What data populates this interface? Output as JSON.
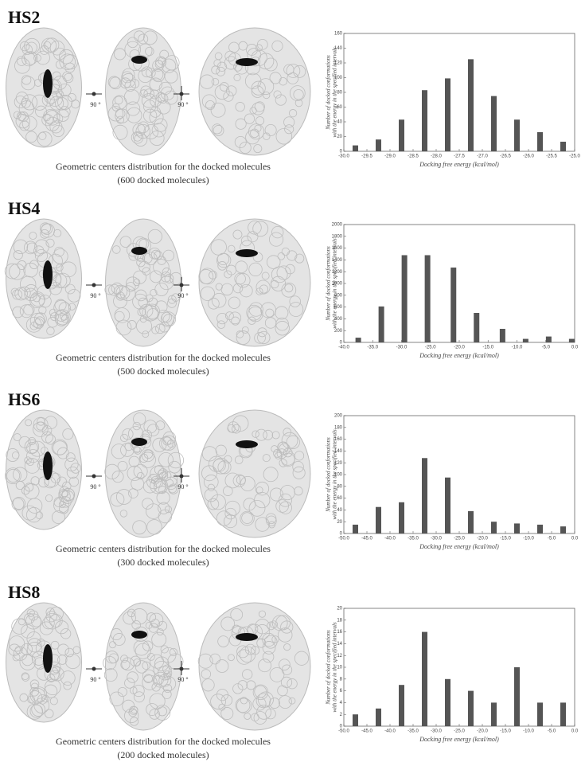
{
  "figure": {
    "rotation_label": "90 °"
  },
  "chart_data": [
    {
      "type": "bar",
      "title": "HS2",
      "caption": [
        "Geometric centers distribution for the docked molecules",
        "(600 docked molecules)"
      ],
      "x_label": "Docking free energy (kcal/mol)",
      "y_label": [
        "Number of docked conformations",
        "with the energy in the specified intervals"
      ],
      "x": [
        -29.75,
        -29.25,
        -28.75,
        -28.25,
        -27.75,
        -27.25,
        -26.75,
        -26.25,
        -25.75,
        -25.25
      ],
      "values": [
        8,
        16,
        43,
        83,
        99,
        125,
        75,
        43,
        26,
        13
      ],
      "color": "#555555",
      "xlim": [
        -30,
        -25
      ],
      "xticks": [
        {
          "value": -30,
          "label": "-30.0"
        },
        {
          "value": -29.5,
          "label": "-29.5"
        },
        {
          "value": -29,
          "label": "-29.0"
        },
        {
          "value": -28.5,
          "label": "-28.5"
        },
        {
          "value": -28,
          "label": "-28.0"
        },
        {
          "value": -27.5,
          "label": "-27.5"
        },
        {
          "value": -27,
          "label": "-27.0"
        },
        {
          "value": -26.5,
          "label": "-26.5"
        },
        {
          "value": -26,
          "label": "-26.0"
        },
        {
          "value": -25.5,
          "label": "-25.5"
        },
        {
          "value": -25,
          "label": "-25.0"
        }
      ],
      "ylim": [
        0,
        160
      ],
      "yticks": [
        0,
        20,
        40,
        60,
        80,
        100,
        120,
        140,
        160
      ]
    },
    {
      "type": "bar",
      "title": "HS4",
      "caption": [
        "Geometric centers distribution for the docked molecules",
        "(500 docked molecules)"
      ],
      "x_label": "Docking free energy (kcal/mol)",
      "y_label": [
        "Number of docked conformations",
        "with the energy in the specified intervals"
      ],
      "x": [
        -37.5,
        -33.5,
        -29.5,
        -25.5,
        -21,
        -17,
        -12.5,
        -8.5,
        -4.5,
        -0.5
      ],
      "values": [
        80,
        610,
        1480,
        1480,
        1270,
        500,
        230,
        60,
        100,
        60
      ],
      "color": "#555555",
      "xlim": [
        -40,
        0
      ],
      "xticks": [
        {
          "value": -40,
          "label": "-40.0"
        },
        {
          "value": -35,
          "label": "-35.0"
        },
        {
          "value": -30,
          "label": "-30.0"
        },
        {
          "value": -25,
          "label": "-25.0"
        },
        {
          "value": -20,
          "label": "-20.0"
        },
        {
          "value": -15,
          "label": "-15.0"
        },
        {
          "value": -10,
          "label": "-10.0"
        },
        {
          "value": -5,
          "label": "-5.0"
        },
        {
          "value": 0,
          "label": "0.0"
        }
      ],
      "ylim": [
        0,
        2000
      ],
      "yticks": [
        0,
        200,
        400,
        600,
        800,
        1000,
        1200,
        1400,
        1600,
        1800,
        2000
      ]
    },
    {
      "type": "bar",
      "title": "HS6",
      "caption": [
        "Geometric centers distribution for the docked molecules",
        "(300 docked molecules)"
      ],
      "x_label": "Docking free energy (kcal/mol)",
      "y_label": [
        "Number of docked conformations",
        "with the energy in the specified intervals"
      ],
      "x": [
        -47.5,
        -42.5,
        -37.5,
        -32.5,
        -27.5,
        -22.5,
        -17.5,
        -12.5,
        -7.5,
        -2.5
      ],
      "values": [
        15,
        45,
        53,
        128,
        95,
        38,
        20,
        17,
        15,
        12
      ],
      "color": "#555555",
      "xlim": [
        -50,
        0
      ],
      "xticks": [
        {
          "value": -50,
          "label": "-50.0"
        },
        {
          "value": -45,
          "label": "-45.0"
        },
        {
          "value": -40,
          "label": "-40.0"
        },
        {
          "value": -35,
          "label": "-35.0"
        },
        {
          "value": -30,
          "label": "-30.0"
        },
        {
          "value": -25,
          "label": "-25.0"
        },
        {
          "value": -20,
          "label": "-20.0"
        },
        {
          "value": -15,
          "label": "-15.0"
        },
        {
          "value": -10,
          "label": "-10.0"
        },
        {
          "value": -5,
          "label": "-5.0"
        },
        {
          "value": 0,
          "label": "0.0"
        }
      ],
      "ylim": [
        0,
        200
      ],
      "yticks": [
        0,
        20,
        40,
        60,
        80,
        100,
        120,
        140,
        160,
        180,
        200
      ]
    },
    {
      "type": "bar",
      "title": "HS8",
      "caption": [
        "Geometric centers distribution for the docked molecules",
        "(200 docked molecules)"
      ],
      "x_label": "Docking free energy (kcal/mol)",
      "y_label": [
        "Number of docked conformations",
        "with the energy in the specified intervals"
      ],
      "x": [
        -47.5,
        -42.5,
        -37.5,
        -32.5,
        -27.5,
        -22.5,
        -17.5,
        -12.5,
        -7.5,
        -2.5
      ],
      "values": [
        2,
        3,
        7,
        16,
        8,
        6,
        4,
        10,
        4,
        4
      ],
      "color": "#555555",
      "xlim": [
        -50,
        0
      ],
      "xticks": [
        {
          "value": -50,
          "label": "-50.0"
        },
        {
          "value": -45,
          "label": "-45.0"
        },
        {
          "value": -40,
          "label": "-40.0"
        },
        {
          "value": -35,
          "label": "-35.0"
        },
        {
          "value": -30,
          "label": "-30.0"
        },
        {
          "value": -25,
          "label": "-25.0"
        },
        {
          "value": -20,
          "label": "-20.0"
        },
        {
          "value": -15,
          "label": "-15.0"
        },
        {
          "value": -10,
          "label": "-10.0"
        },
        {
          "value": -5,
          "label": "-5.0"
        },
        {
          "value": 0,
          "label": "0.0"
        }
      ],
      "ylim": [
        0,
        20
      ],
      "yticks": [
        0,
        2,
        4,
        6,
        8,
        10,
        12,
        14,
        16,
        18,
        20
      ]
    }
  ]
}
